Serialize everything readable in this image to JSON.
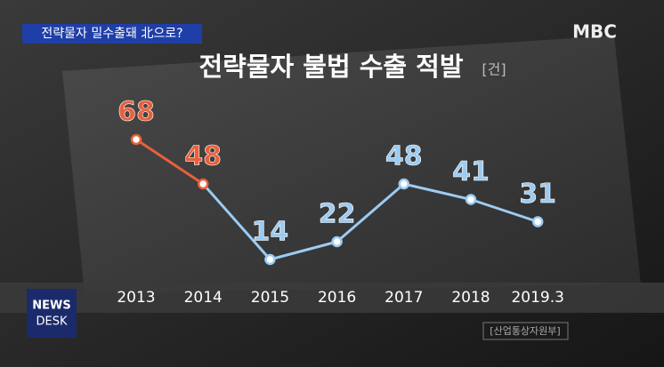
{
  "chart_data": {
    "type": "line",
    "title": "전략물자 불법 수출 적발",
    "unit": "[건]",
    "categories": [
      "2013",
      "2014",
      "2015",
      "2016",
      "2017",
      "2018",
      "2019.3"
    ],
    "values": [
      68,
      48,
      14,
      22,
      48,
      41,
      31
    ],
    "colors": [
      "#e8603c",
      "#e8603c",
      "#9ccbf2",
      "#9ccbf2",
      "#9ccbf2",
      "#9ccbf2",
      "#9ccbf2"
    ],
    "ylim": [
      0,
      80
    ],
    "source": "[산업통상자원부]"
  },
  "banner": "전략물자 밀수출돼 北으로?",
  "logo": "MBC",
  "program": [
    "NEWS",
    "DESK"
  ]
}
